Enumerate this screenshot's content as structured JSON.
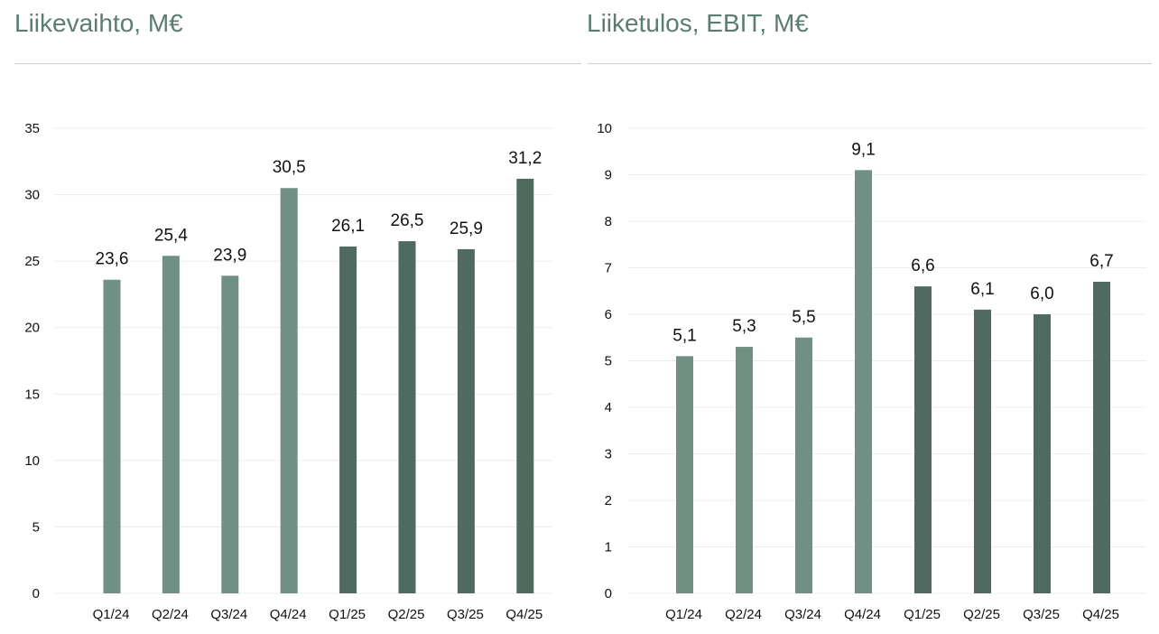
{
  "colors": {
    "title": "#5b7d70",
    "bar_2024": "#6f9082",
    "bar_2025": "#4f6b60",
    "grid": "#ececec",
    "text": "#111111"
  },
  "chart_data": [
    {
      "type": "bar",
      "title": "Liikevaihto, M€",
      "categories": [
        "Q1/24",
        "Q2/24",
        "Q3/24",
        "Q4/24",
        "Q1/25",
        "Q2/25",
        "Q3/25",
        "Q4/25"
      ],
      "values": [
        23.6,
        25.4,
        23.9,
        30.5,
        26.1,
        26.5,
        25.9,
        31.2
      ],
      "data_labels": [
        "23,6",
        "25,4",
        "23,9",
        "30,5",
        "26,1",
        "26,5",
        "25,9",
        "31,2"
      ],
      "yticks": [
        "0",
        "5",
        "10",
        "15",
        "20",
        "25",
        "30",
        "35"
      ],
      "ylim": [
        0,
        35
      ],
      "grid": true,
      "bar_colors": [
        "#6f9082",
        "#6f9082",
        "#6f9082",
        "#6f9082",
        "#4f6b60",
        "#4f6b60",
        "#4f6b60",
        "#4f6b60"
      ]
    },
    {
      "type": "bar",
      "title": "Liiketulos, EBIT, M€",
      "categories": [
        "Q1/24",
        "Q2/24",
        "Q3/24",
        "Q4/24",
        "Q1/25",
        "Q2/25",
        "Q3/25",
        "Q4/25"
      ],
      "values": [
        5.1,
        5.3,
        5.5,
        9.1,
        6.6,
        6.1,
        6.0,
        6.7
      ],
      "data_labels": [
        "5,1",
        "5,3",
        "5,5",
        "9,1",
        "6,6",
        "6,1",
        "6,0",
        "6,7"
      ],
      "yticks": [
        "0",
        "1",
        "2",
        "3",
        "4",
        "5",
        "6",
        "7",
        "8",
        "9",
        "10"
      ],
      "ylim": [
        0,
        10
      ],
      "grid": true,
      "bar_colors": [
        "#6f9082",
        "#6f9082",
        "#6f9082",
        "#6f9082",
        "#4f6b60",
        "#4f6b60",
        "#4f6b60",
        "#4f6b60"
      ]
    }
  ]
}
